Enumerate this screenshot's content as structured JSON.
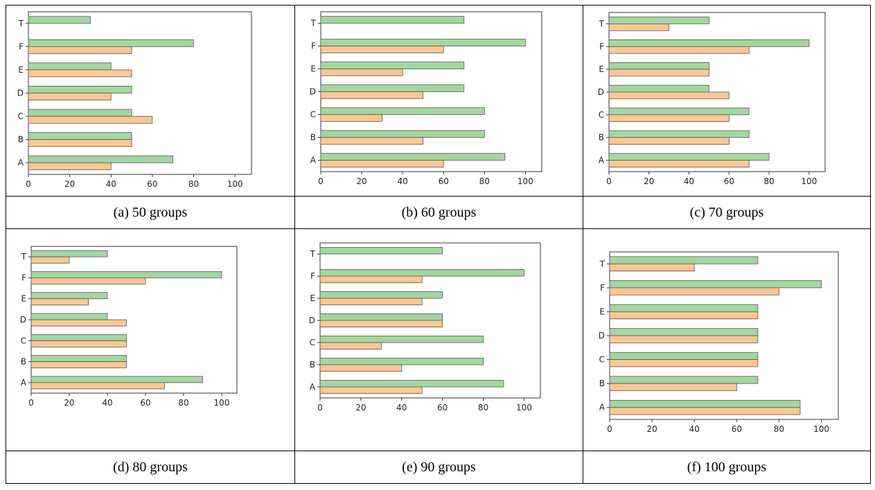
{
  "colors": {
    "green": "#a5d6a1",
    "orange": "#fbc794",
    "bar_edge": "#555555",
    "axis": "#333333"
  },
  "chart_data": [
    {
      "type": "bar",
      "orientation": "horizontal",
      "caption": "(a) 50 groups",
      "categories": [
        "A",
        "B",
        "C",
        "D",
        "E",
        "F",
        "T"
      ],
      "series": [
        {
          "color": "green",
          "values": [
            70,
            50,
            50,
            50,
            40,
            80,
            30
          ]
        },
        {
          "color": "orange",
          "values": [
            40,
            50,
            60,
            40,
            50,
            50,
            0
          ]
        }
      ],
      "xlim": [
        0,
        108
      ],
      "xticks": [
        0,
        20,
        40,
        60,
        80,
        100
      ]
    },
    {
      "type": "bar",
      "orientation": "horizontal",
      "caption": "(b) 60 groups",
      "categories": [
        "A",
        "B",
        "C",
        "D",
        "E",
        "F",
        "T"
      ],
      "series": [
        {
          "color": "green",
          "values": [
            90,
            80,
            80,
            70,
            70,
            100,
            70
          ]
        },
        {
          "color": "orange",
          "values": [
            60,
            50,
            30,
            50,
            40,
            60,
            0
          ]
        }
      ],
      "xlim": [
        0,
        108
      ],
      "xticks": [
        0,
        20,
        40,
        60,
        80,
        100
      ]
    },
    {
      "type": "bar",
      "orientation": "horizontal",
      "caption": "(c) 70 groups",
      "categories": [
        "A",
        "B",
        "C",
        "D",
        "E",
        "F",
        "T"
      ],
      "series": [
        {
          "color": "green",
          "values": [
            80,
            70,
            70,
            50,
            50,
            100,
            50
          ]
        },
        {
          "color": "orange",
          "values": [
            70,
            60,
            60,
            60,
            50,
            70,
            30
          ]
        }
      ],
      "xlim": [
        0,
        108
      ],
      "xticks": [
        0,
        20,
        40,
        60,
        80,
        100
      ]
    },
    {
      "type": "bar",
      "orientation": "horizontal",
      "caption": "(d) 80 groups",
      "categories": [
        "A",
        "B",
        "C",
        "D",
        "E",
        "F",
        "T"
      ],
      "series": [
        {
          "color": "green",
          "values": [
            90,
            50,
            50,
            40,
            40,
            100,
            40
          ]
        },
        {
          "color": "orange",
          "values": [
            70,
            50,
            50,
            50,
            30,
            60,
            20
          ]
        }
      ],
      "xlim": [
        0,
        108
      ],
      "xticks": [
        0,
        20,
        40,
        60,
        80,
        100
      ]
    },
    {
      "type": "bar",
      "orientation": "horizontal",
      "caption": "(e) 90 groups",
      "categories": [
        "A",
        "B",
        "C",
        "D",
        "E",
        "F",
        "T"
      ],
      "series": [
        {
          "color": "green",
          "values": [
            90,
            80,
            80,
            60,
            60,
            100,
            60
          ]
        },
        {
          "color": "orange",
          "values": [
            50,
            40,
            30,
            60,
            50,
            50,
            0
          ]
        }
      ],
      "xlim": [
        0,
        108
      ],
      "xticks": [
        0,
        20,
        40,
        60,
        80,
        100
      ]
    },
    {
      "type": "bar",
      "orientation": "horizontal",
      "caption": "(f) 100 groups",
      "categories": [
        "A",
        "B",
        "C",
        "D",
        "E",
        "F",
        "T"
      ],
      "series": [
        {
          "color": "green",
          "values": [
            90,
            70,
            70,
            70,
            70,
            100,
            70
          ]
        },
        {
          "color": "orange",
          "values": [
            90,
            60,
            70,
            70,
            70,
            80,
            40
          ]
        }
      ],
      "xlim": [
        0,
        108
      ],
      "xticks": [
        0,
        20,
        40,
        60,
        80,
        100
      ]
    }
  ]
}
